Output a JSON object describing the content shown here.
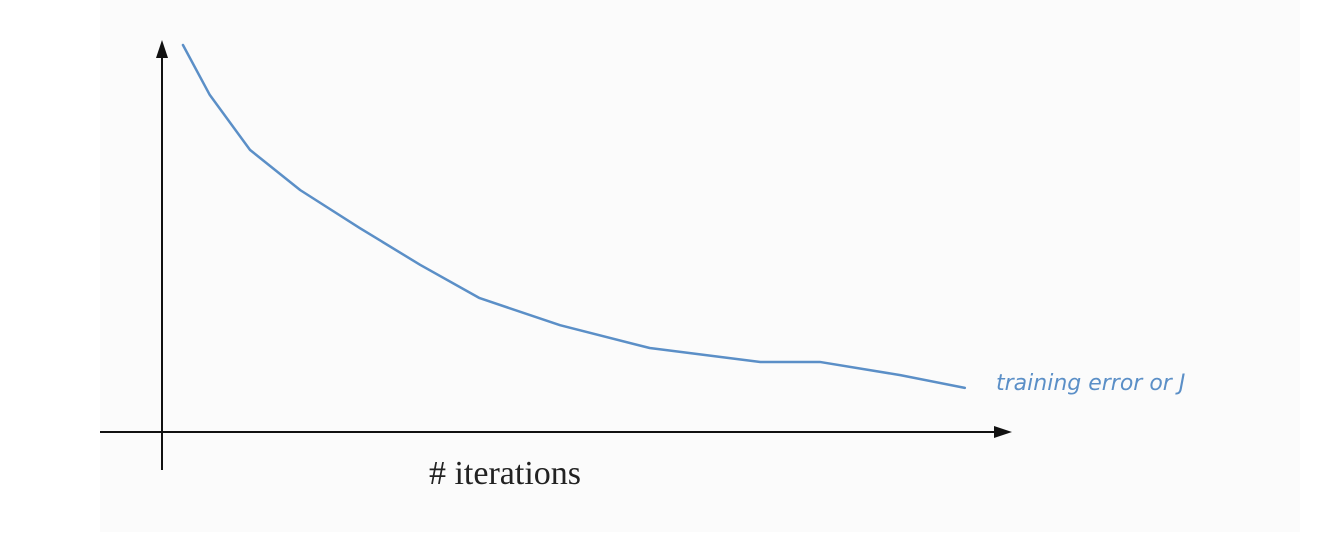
{
  "chart_data": {
    "type": "line",
    "x_label": "# iterations",
    "annotation": "training error or J",
    "x": [
      2.5,
      5.7,
      10.5,
      16.5,
      23.6,
      30.8,
      37.9,
      47.5,
      58.2,
      71.4,
      78.5,
      88.1,
      95.8
    ],
    "series": [
      {
        "name": "training error or J",
        "color": "#5b8fc7",
        "values": [
          100,
          87.1,
          72.9,
          62.5,
          52.7,
          43.2,
          34.6,
          27.6,
          21.7,
          18.1,
          18.1,
          14.7,
          11.4
        ]
      }
    ],
    "xlim": [
      0,
      100
    ],
    "ylim": [
      0,
      100
    ]
  }
}
